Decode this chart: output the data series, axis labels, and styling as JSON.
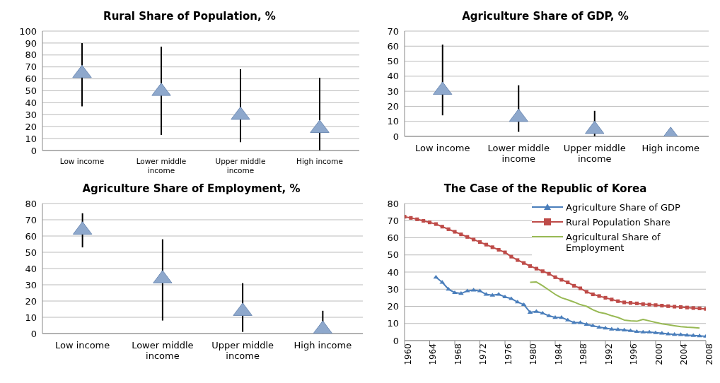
{
  "chart_data": [
    {
      "type": "scatter",
      "title": "Rural Share of Population, %",
      "categories": [
        "Low income",
        "Lower middle income",
        "Upper middle income",
        "High income"
      ],
      "values": [
        65,
        50,
        30,
        19
      ],
      "errors": [
        [
          37,
          90
        ],
        [
          13,
          87
        ],
        [
          7,
          68
        ],
        [
          0,
          61
        ]
      ],
      "color": "#8ea8cc",
      "marker": "triangle",
      "ylim": [
        0,
        100
      ],
      "yticks": [
        0,
        10,
        20,
        30,
        40,
        50,
        60,
        70,
        80,
        90,
        100
      ],
      "grid": "y"
    },
    {
      "type": "scatter",
      "title": "Agriculture Share of GDP, %",
      "categories": [
        "Low income",
        "Lower middle income",
        "Upper middle income",
        "High income"
      ],
      "values": [
        31,
        13,
        5,
        1
      ],
      "errors": [
        [
          14,
          61
        ],
        [
          3,
          34
        ],
        [
          0,
          17
        ],
        null
      ],
      "color": "#8ea8cc",
      "marker": "triangle",
      "ylim": [
        0,
        70
      ],
      "yticks": [
        0,
        10,
        20,
        30,
        40,
        50,
        60,
        70
      ],
      "grid": "y"
    },
    {
      "type": "scatter",
      "title": "Agriculture Share of Employment, %",
      "categories": [
        "Low income",
        "Lower middle income",
        "Upper middle income",
        "High income"
      ],
      "values": [
        64,
        34,
        14,
        3
      ],
      "errors": [
        [
          53,
          74
        ],
        [
          8,
          58
        ],
        [
          1,
          31
        ],
        [
          0,
          14
        ]
      ],
      "color": "#8ea8cc",
      "marker": "triangle",
      "ylim": [
        0,
        80
      ],
      "yticks": [
        0,
        10,
        20,
        30,
        40,
        50,
        60,
        70,
        80
      ],
      "grid": "y"
    },
    {
      "type": "line",
      "title": "The Case of the Republic of Korea",
      "xlim": [
        1960,
        2008
      ],
      "xticks": [
        1960,
        1964,
        1968,
        1972,
        1976,
        1980,
        1984,
        1988,
        1992,
        1996,
        2000,
        2004,
        2008
      ],
      "ylim": [
        0,
        80
      ],
      "yticks": [
        0,
        10,
        20,
        30,
        40,
        50,
        60,
        70,
        80
      ],
      "grid": "y",
      "legend": "top right",
      "series": [
        {
          "name": "Agriculture Share of GDP",
          "color": "#4a7ebb",
          "marker": "triangle",
          "x": [
            1965,
            1966,
            1967,
            1968,
            1969,
            1970,
            1971,
            1972,
            1973,
            1974,
            1975,
            1976,
            1977,
            1978,
            1979,
            1980,
            1981,
            1982,
            1983,
            1984,
            1985,
            1986,
            1987,
            1988,
            1989,
            1990,
            1991,
            1992,
            1993,
            1994,
            1995,
            1996,
            1997,
            1998,
            1999,
            2000,
            2001,
            2002,
            2003,
            2004,
            2005,
            2006,
            2007,
            2008
          ],
          "values": [
            37,
            34,
            30,
            28,
            27.5,
            29,
            29.5,
            29,
            27,
            26.5,
            27,
            25.5,
            24.5,
            22.5,
            21,
            16.5,
            17,
            16,
            14.5,
            13.5,
            13.5,
            12,
            10.5,
            10.5,
            9.5,
            8.7,
            7.8,
            7.3,
            6.7,
            6.5,
            6.2,
            5.8,
            5.3,
            5,
            5,
            4.6,
            4.3,
            3.9,
            3.6,
            3.5,
            3.2,
            3,
            2.8,
            2.5
          ]
        },
        {
          "name": "Rural Population Share",
          "color": "#be4b48",
          "marker": "square",
          "x": [
            1960,
            1961,
            1962,
            1963,
            1964,
            1965,
            1966,
            1967,
            1968,
            1969,
            1970,
            1971,
            1972,
            1973,
            1974,
            1975,
            1976,
            1977,
            1978,
            1979,
            1980,
            1981,
            1982,
            1983,
            1984,
            1985,
            1986,
            1987,
            1988,
            1989,
            1990,
            1991,
            1992,
            1993,
            1994,
            1995,
            1996,
            1997,
            1998,
            1999,
            2000,
            2001,
            2002,
            2003,
            2004,
            2005,
            2006,
            2007,
            2008
          ],
          "values": [
            72.3,
            71.6,
            70.8,
            69.9,
            69,
            68,
            66.5,
            65,
            63.5,
            62,
            60.5,
            59,
            57.5,
            56,
            54.5,
            53,
            51.5,
            49,
            47,
            45.3,
            43.5,
            42,
            40.5,
            39,
            37,
            35.5,
            34,
            32,
            30.5,
            28.5,
            27,
            26,
            25,
            24,
            23,
            22.3,
            22,
            21.7,
            21.3,
            21,
            20.7,
            20.4,
            20.1,
            19.8,
            19.6,
            19.3,
            19,
            18.8,
            18.5
          ]
        },
        {
          "name": "Agricultural Share of Employment",
          "color": "#98b954",
          "marker": "none",
          "x": [
            1980,
            1981,
            1982,
            1983,
            1984,
            1985,
            1986,
            1987,
            1988,
            1989,
            1990,
            1991,
            1992,
            1993,
            1994,
            1995,
            1996,
            1997,
            1998,
            1999,
            2000,
            2001,
            2002,
            2003,
            2004,
            2005,
            2006,
            2007
          ],
          "values": [
            34,
            34.2,
            32,
            29.5,
            27,
            25,
            23.8,
            22.5,
            21,
            20,
            18,
            16.5,
            15.8,
            14.5,
            13.5,
            12,
            11.5,
            11.3,
            12.4,
            11.5,
            10.6,
            9.8,
            9.3,
            8.7,
            8.1,
            7.8,
            7.6,
            7.3
          ]
        }
      ]
    }
  ]
}
